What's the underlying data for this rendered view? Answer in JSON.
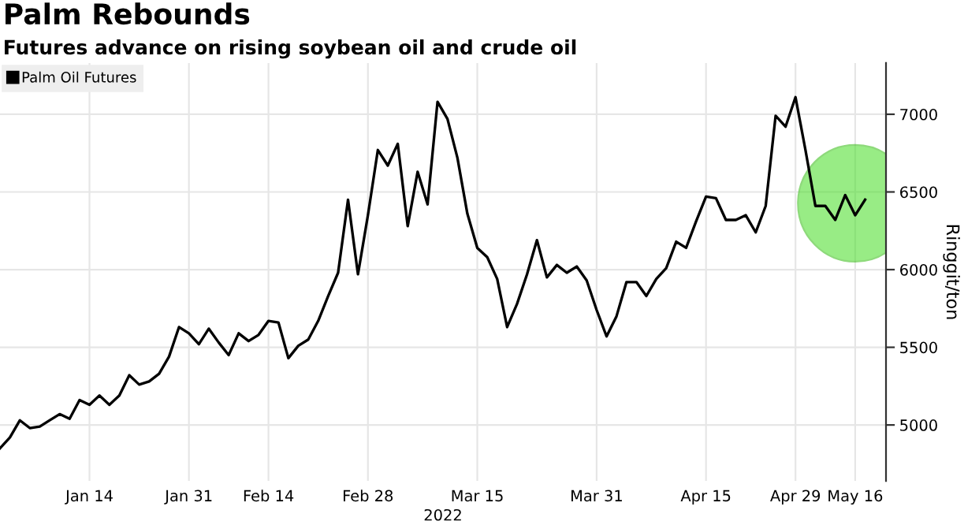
{
  "chart_data": {
    "type": "line",
    "title": "Palm Rebounds",
    "subtitle": "Futures advance on rising soybean oil and crude oil",
    "xlabel": "2022",
    "ylabel": "Ringgit/ton",
    "categories": [
      null,
      null,
      null,
      null,
      null,
      null,
      null,
      null,
      null,
      "Jan 14",
      null,
      null,
      null,
      null,
      null,
      null,
      null,
      null,
      null,
      "Jan 31",
      null,
      null,
      null,
      null,
      null,
      null,
      null,
      "Feb 14",
      null,
      null,
      null,
      null,
      null,
      null,
      null,
      null,
      null,
      "Feb 28",
      null,
      null,
      null,
      null,
      null,
      null,
      null,
      null,
      null,
      null,
      "Mar 15",
      null,
      null,
      null,
      null,
      null,
      null,
      null,
      null,
      null,
      null,
      null,
      "Mar 31",
      null,
      null,
      null,
      null,
      null,
      null,
      null,
      null,
      null,
      null,
      "Apr 15",
      null,
      null,
      null,
      null,
      null,
      null,
      null,
      null,
      "Apr 29",
      null,
      null,
      null,
      null,
      null,
      "May 16",
      null
    ],
    "series": [
      {
        "name": "Palm Oil Futures",
        "color": "#000000",
        "values": [
          4850,
          4920,
          5030,
          4980,
          4990,
          5030,
          5070,
          5040,
          5160,
          5130,
          5190,
          5130,
          5190,
          5320,
          5260,
          5280,
          5330,
          5440,
          5630,
          5590,
          5520,
          5620,
          5530,
          5450,
          5590,
          5540,
          5580,
          5670,
          5660,
          5430,
          5510,
          5550,
          5670,
          5830,
          5980,
          6450,
          5970,
          6350,
          6770,
          6670,
          6810,
          6280,
          6630,
          6420,
          7080,
          6970,
          6720,
          6360,
          6140,
          6080,
          5940,
          5630,
          5780,
          5970,
          6190,
          5950,
          6030,
          5980,
          6020,
          5930,
          5740,
          5570,
          5700,
          5920,
          5920,
          5830,
          5940,
          6010,
          6180,
          6140,
          6310,
          6470,
          6460,
          6320,
          6320,
          6350,
          6240,
          6410,
          6990,
          6920,
          7110,
          6770,
          6410,
          6410,
          6320,
          6480,
          6350,
          6450
        ]
      }
    ],
    "ylim": [
      4640,
      7330
    ],
    "yticks": [
      5000,
      5500,
      6000,
      6500,
      7000
    ],
    "grid": true,
    "legend": "top left",
    "marker": "none",
    "line_style": "solid"
  }
}
